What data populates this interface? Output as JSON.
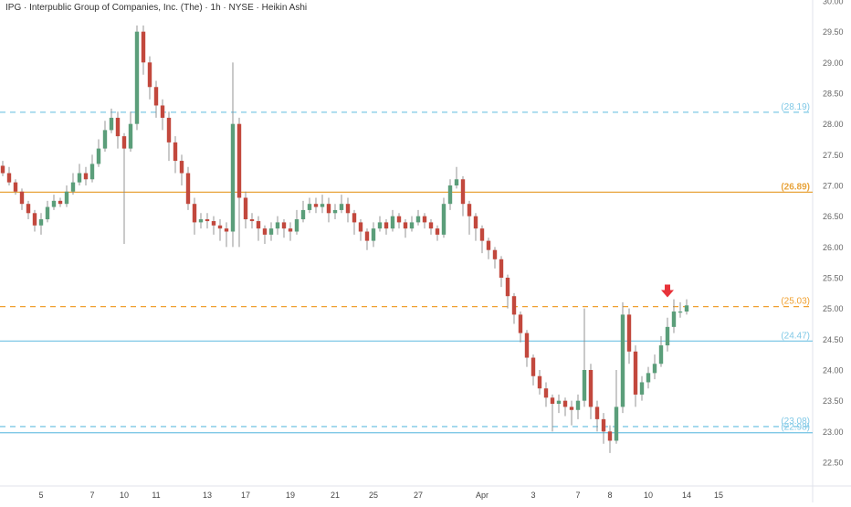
{
  "chart_data": {
    "type": "candlestick",
    "title": "IPG · Interpublic Group of Companies, Inc. (The) · 1h · NYSE · Heikin Ashi",
    "ylim": [
      22.3,
      30.0
    ],
    "y_ticks": [
      "30.00",
      "29.50",
      "29.00",
      "28.50",
      "28.00",
      "27.50",
      "27.00",
      "26.50",
      "26.00",
      "25.50",
      "25.00",
      "24.50",
      "24.00",
      "23.50",
      "23.00",
      "22.50"
    ],
    "x_ticks": [
      {
        "label": "5",
        "i": 6
      },
      {
        "label": "7",
        "i": 14
      },
      {
        "label": "10",
        "i": 19
      },
      {
        "label": "11",
        "i": 24
      },
      {
        "label": "13",
        "i": 32
      },
      {
        "label": "17",
        "i": 38
      },
      {
        "label": "19",
        "i": 45
      },
      {
        "label": "21",
        "i": 52
      },
      {
        "label": "25",
        "i": 58
      },
      {
        "label": "27",
        "i": 65
      },
      {
        "label": "Apr",
        "i": 75
      },
      {
        "label": "3",
        "i": 83
      },
      {
        "label": "7",
        "i": 90
      },
      {
        "label": "8",
        "i": 95
      },
      {
        "label": "10",
        "i": 101
      },
      {
        "label": "14",
        "i": 107
      },
      {
        "label": "15",
        "i": 112
      }
    ],
    "levels": [
      {
        "value": 28.19,
        "label": "(28.19)",
        "color": "#7fc8e6",
        "style": "dashed"
      },
      {
        "value": 26.89,
        "label": "(26.89)",
        "color": "#e8a33a",
        "style": "solid"
      },
      {
        "value": 25.03,
        "label": "(25.03)",
        "color": "#f0a030",
        "style": "dashed"
      },
      {
        "value": 24.47,
        "label": "(24.47)",
        "color": "#7fc8e6",
        "style": "solid"
      },
      {
        "value": 23.08,
        "label": "(23.08)",
        "color": "#7fc8e6",
        "style": "dashed"
      },
      {
        "value": 22.98,
        "label": "(22.98)",
        "color": "#7fc8e6",
        "style": "solid"
      }
    ],
    "marker": {
      "type": "down-arrow",
      "x_index": 104,
      "value": 25.18,
      "color": "#e8333a"
    },
    "colors": {
      "up": "#5b9e7a",
      "down": "#c2483d",
      "wick": "#888888"
    },
    "candles": [
      [
        27.32,
        27.2,
        27.4,
        27.15
      ],
      [
        27.2,
        27.05,
        27.3,
        27.0
      ],
      [
        27.05,
        26.9,
        27.1,
        26.85
      ],
      [
        26.9,
        26.7,
        26.95,
        26.6
      ],
      [
        26.7,
        26.55,
        26.75,
        26.45
      ],
      [
        26.55,
        26.35,
        26.6,
        26.25
      ],
      [
        26.35,
        26.45,
        26.55,
        26.2
      ],
      [
        26.45,
        26.65,
        26.75,
        26.4
      ],
      [
        26.65,
        26.75,
        26.85,
        26.6
      ],
      [
        26.75,
        26.7,
        26.8,
        26.65
      ],
      [
        26.7,
        26.9,
        27.0,
        26.65
      ],
      [
        26.9,
        27.05,
        27.2,
        26.85
      ],
      [
        27.05,
        27.2,
        27.35,
        27.0
      ],
      [
        27.2,
        27.1,
        27.3,
        27.0
      ],
      [
        27.1,
        27.35,
        27.5,
        27.05
      ],
      [
        27.35,
        27.6,
        27.75,
        27.3
      ],
      [
        27.6,
        27.9,
        28.05,
        27.55
      ],
      [
        27.9,
        28.1,
        28.25,
        27.85
      ],
      [
        28.1,
        27.8,
        28.2,
        27.6
      ],
      [
        27.8,
        27.6,
        27.85,
        26.05
      ],
      [
        27.6,
        28.0,
        28.2,
        27.55
      ],
      [
        28.0,
        29.5,
        29.6,
        27.9
      ],
      [
        29.5,
        29.0,
        29.6,
        28.8
      ],
      [
        29.0,
        28.6,
        29.1,
        28.4
      ],
      [
        28.6,
        28.3,
        28.7,
        28.1
      ],
      [
        28.3,
        28.1,
        28.4,
        27.9
      ],
      [
        28.1,
        27.7,
        28.2,
        27.4
      ],
      [
        27.7,
        27.4,
        27.8,
        27.2
      ],
      [
        27.4,
        27.2,
        27.5,
        27.0
      ],
      [
        27.2,
        26.7,
        27.3,
        26.6
      ],
      [
        26.7,
        26.4,
        26.8,
        26.2
      ],
      [
        26.4,
        26.45,
        26.55,
        26.3
      ],
      [
        26.45,
        26.42,
        26.55,
        26.3
      ],
      [
        26.42,
        26.35,
        26.5,
        26.2
      ],
      [
        26.35,
        26.3,
        26.45,
        26.1
      ],
      [
        26.3,
        26.25,
        26.4,
        26.0
      ],
      [
        26.25,
        28.0,
        29.0,
        26.0
      ],
      [
        28.0,
        26.8,
        28.1,
        26.0
      ],
      [
        26.8,
        26.45,
        26.9,
        26.3
      ],
      [
        26.45,
        26.42,
        26.55,
        26.3
      ],
      [
        26.42,
        26.3,
        26.5,
        26.1
      ],
      [
        26.3,
        26.2,
        26.35,
        26.05
      ],
      [
        26.2,
        26.3,
        26.4,
        26.1
      ],
      [
        26.3,
        26.4,
        26.5,
        26.2
      ],
      [
        26.4,
        26.3,
        26.45,
        26.15
      ],
      [
        26.3,
        26.25,
        26.4,
        26.1
      ],
      [
        26.25,
        26.45,
        26.6,
        26.2
      ],
      [
        26.45,
        26.6,
        26.75,
        26.4
      ],
      [
        26.6,
        26.7,
        26.8,
        26.55
      ],
      [
        26.7,
        26.65,
        26.8,
        26.55
      ],
      [
        26.65,
        26.7,
        26.85,
        26.55
      ],
      [
        26.7,
        26.55,
        26.8,
        26.4
      ],
      [
        26.55,
        26.6,
        26.7,
        26.45
      ],
      [
        26.6,
        26.7,
        26.85,
        26.55
      ],
      [
        26.7,
        26.55,
        26.8,
        26.4
      ],
      [
        26.55,
        26.4,
        26.6,
        26.2
      ],
      [
        26.4,
        26.25,
        26.45,
        26.1
      ],
      [
        26.25,
        26.1,
        26.3,
        25.95
      ],
      [
        26.1,
        26.3,
        26.4,
        26.0
      ],
      [
        26.3,
        26.4,
        26.5,
        26.25
      ],
      [
        26.4,
        26.3,
        26.45,
        26.2
      ],
      [
        26.3,
        26.5,
        26.6,
        26.25
      ],
      [
        26.5,
        26.4,
        26.55,
        26.3
      ],
      [
        26.4,
        26.3,
        26.45,
        26.15
      ],
      [
        26.3,
        26.4,
        26.5,
        26.25
      ],
      [
        26.4,
        26.5,
        26.6,
        26.35
      ],
      [
        26.5,
        26.4,
        26.55,
        26.3
      ],
      [
        26.4,
        26.3,
        26.45,
        26.2
      ],
      [
        26.3,
        26.2,
        26.35,
        26.1
      ],
      [
        26.2,
        26.7,
        26.8,
        26.15
      ],
      [
        26.7,
        27.0,
        27.1,
        26.6
      ],
      [
        27.0,
        27.1,
        27.3,
        26.95
      ],
      [
        27.1,
        26.7,
        27.15,
        26.5
      ],
      [
        26.7,
        26.5,
        26.75,
        26.2
      ],
      [
        26.5,
        26.3,
        26.55,
        26.1
      ],
      [
        26.3,
        26.1,
        26.35,
        25.9
      ],
      [
        26.1,
        25.95,
        26.15,
        25.8
      ],
      [
        25.95,
        25.8,
        26.0,
        25.65
      ],
      [
        25.8,
        25.5,
        25.85,
        25.35
      ],
      [
        25.5,
        25.2,
        25.55,
        25.0
      ],
      [
        25.2,
        24.9,
        25.25,
        24.75
      ],
      [
        24.9,
        24.6,
        24.95,
        24.45
      ],
      [
        24.6,
        24.2,
        24.65,
        24.05
      ],
      [
        24.2,
        23.9,
        24.25,
        23.75
      ],
      [
        23.9,
        23.7,
        24.0,
        23.6
      ],
      [
        23.7,
        23.55,
        23.8,
        23.4
      ],
      [
        23.55,
        23.45,
        23.6,
        23.0
      ],
      [
        23.45,
        23.5,
        23.6,
        23.3
      ],
      [
        23.5,
        23.4,
        23.55,
        23.25
      ],
      [
        23.4,
        23.35,
        23.5,
        23.1
      ],
      [
        23.35,
        23.5,
        23.6,
        23.2
      ],
      [
        23.5,
        24.0,
        25.0,
        23.4
      ],
      [
        24.0,
        23.4,
        24.1,
        23.2
      ],
      [
        23.4,
        23.2,
        23.5,
        23.0
      ],
      [
        23.2,
        23.0,
        23.3,
        22.8
      ],
      [
        23.0,
        22.85,
        23.1,
        22.65
      ],
      [
        22.85,
        23.4,
        24.0,
        22.8
      ],
      [
        23.4,
        24.9,
        25.1,
        23.3
      ],
      [
        24.9,
        24.3,
        25.0,
        24.1
      ],
      [
        24.3,
        23.6,
        24.4,
        23.4
      ],
      [
        23.6,
        23.8,
        23.9,
        23.5
      ],
      [
        23.8,
        23.95,
        24.05,
        23.7
      ],
      [
        23.95,
        24.1,
        24.25,
        23.85
      ],
      [
        24.1,
        24.4,
        24.55,
        24.05
      ],
      [
        24.4,
        24.7,
        24.85,
        24.3
      ],
      [
        24.7,
        24.95,
        25.15,
        24.6
      ],
      [
        24.95,
        24.95,
        25.1,
        24.85
      ],
      [
        24.95,
        25.05,
        25.15,
        24.9
      ]
    ]
  }
}
